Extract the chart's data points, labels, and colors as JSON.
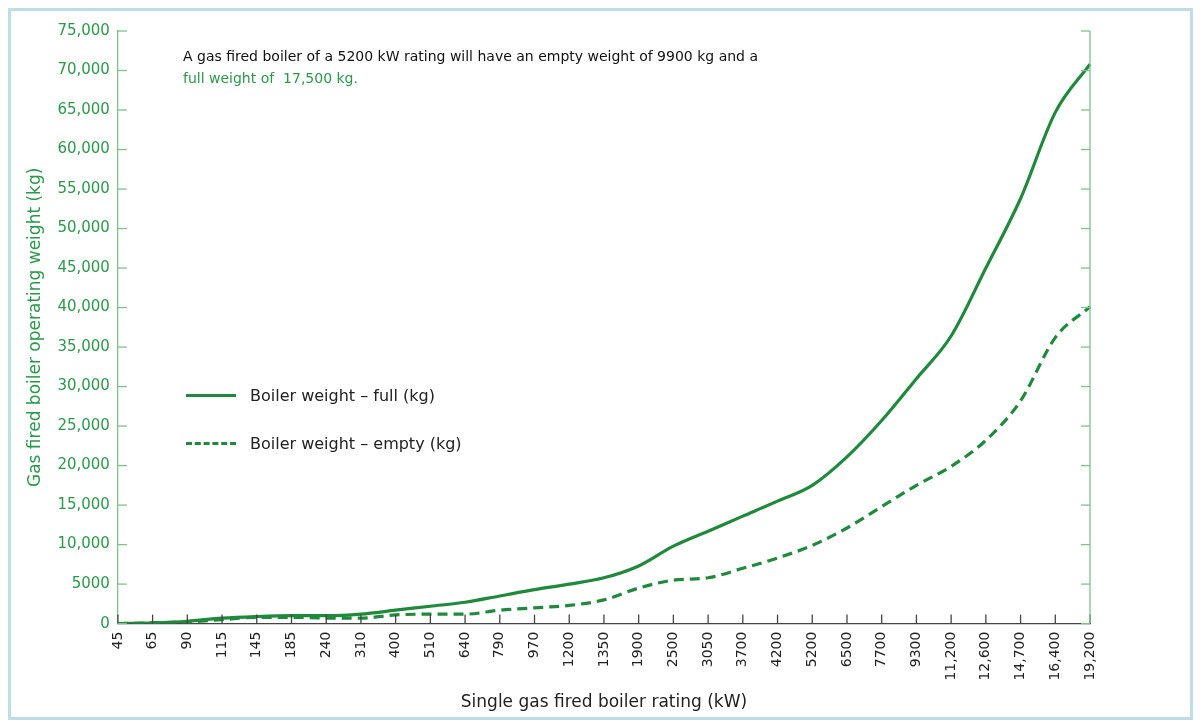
{
  "chart_data": {
    "type": "line",
    "xlabel": "Single gas fired boiler rating (kW)",
    "ylabel": "Gas fired boiler operating weight (kg)",
    "annotations": [
      "A gas fired boiler of a 5200 kW rating will have an empty weight of 9900 kg and a",
      "full weight of  17,500 kg."
    ],
    "categories": [
      "45",
      "65",
      "90",
      "115",
      "145",
      "185",
      "240",
      "310",
      "400",
      "510",
      "640",
      "790",
      "970",
      "1200",
      "1350",
      "1900",
      "2500",
      "3050",
      "3700",
      "4200",
      "5200",
      "6500",
      "7700",
      "9300",
      "11,200",
      "12,600",
      "14,700",
      "16,400",
      "19,200"
    ],
    "series": [
      {
        "name": "Boiler weight – full (kg)",
        "color": "#1f8a3c",
        "line_style": "solid",
        "values": [
          0,
          100,
          300,
          700,
          900,
          1000,
          1000,
          1200,
          1700,
          2200,
          2700,
          3500,
          4300,
          5000,
          5800,
          7300,
          9800,
          11700,
          13600,
          15500,
          17500,
          21100,
          25700,
          31000,
          36400,
          45000,
          53800,
          64700,
          70800
        ]
      },
      {
        "name": "Boiler weight – empty (kg)",
        "color": "#1f8a3c",
        "line_style": "dashed",
        "values": [
          0,
          100,
          200,
          500,
          800,
          800,
          700,
          700,
          1100,
          1200,
          1200,
          1700,
          2000,
          2300,
          3000,
          4500,
          5500,
          5800,
          7000,
          8300,
          9900,
          12100,
          14800,
          17500,
          19900,
          23200,
          28200,
          36200,
          40100
        ]
      }
    ],
    "ylim": [
      0,
      75000
    ],
    "yticks": [
      0,
      5000,
      {
        "value": 10000,
        "label": "10,000"
      },
      {
        "value": 15000,
        "label": "15,000"
      },
      {
        "value": 20000,
        "label": "20,000"
      },
      {
        "value": 25000,
        "label": "25,000"
      },
      {
        "value": 30000,
        "label": "30,000"
      },
      {
        "value": 35000,
        "label": "35,000"
      },
      {
        "value": 40000,
        "label": "40,000"
      },
      {
        "value": 45000,
        "label": "45,000"
      },
      {
        "value": 50000,
        "label": "50,000"
      },
      {
        "value": 55000,
        "label": "55,000"
      },
      {
        "value": 60000,
        "label": "60,000"
      },
      {
        "value": 65000,
        "label": "65,000"
      },
      {
        "value": 70000,
        "label": "70,000"
      },
      {
        "value": 75000,
        "label": "75,000"
      }
    ],
    "grid": false,
    "legend": "left",
    "marker": "none"
  }
}
